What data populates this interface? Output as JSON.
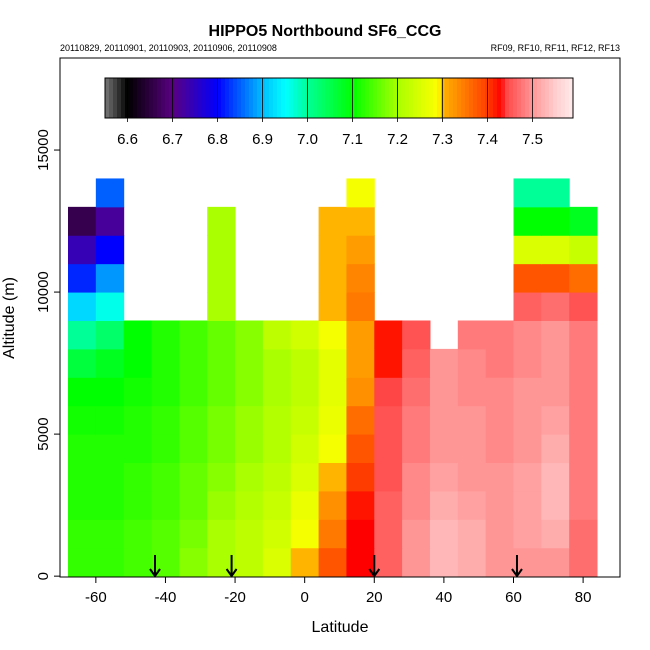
{
  "chart_data": {
    "type": "heatmap",
    "title": "HIPPO5 Northbound SF6_CCG",
    "subtitle_left": "20110829, 20110901, 20110903, 20110906, 20110908",
    "subtitle_right": "RF09, RF10, RF11, RF12, RF13",
    "xlabel": "Latitude",
    "ylabel": "Altitude (m)",
    "xlim": [
      -70.3,
      90.6
    ],
    "ylim": [
      -30,
      18240
    ],
    "xticks": [
      -60,
      -40,
      -20,
      0,
      20,
      40,
      60,
      80
    ],
    "xtick_labels": [
      "-60",
      "-40",
      "-20",
      "0",
      "20",
      "40",
      "60",
      "80"
    ],
    "yticks": [
      0,
      5000,
      10000,
      15000
    ],
    "ytick_labels": [
      "0",
      "5000",
      "10000",
      "15000"
    ],
    "grid": false,
    "colorbar": {
      "placement": "top",
      "range": [
        6.55,
        7.59
      ],
      "ticks": [
        6.6,
        6.7,
        6.8,
        6.9,
        7.0,
        7.1,
        7.2,
        7.3,
        7.4,
        7.5
      ],
      "tick_labels": [
        "6.6",
        "6.7",
        "6.8",
        "6.9",
        "7.0",
        "7.1",
        "7.2",
        "7.3",
        "7.4",
        "7.5"
      ]
    },
    "lat_centers": [
      -64,
      -56,
      -48,
      -40,
      -32,
      -24,
      -16,
      -8,
      0,
      8,
      16,
      24,
      32,
      40,
      48,
      56,
      64,
      72,
      80
    ],
    "lat_width": 8,
    "alt_centers": [
      500,
      1500,
      2500,
      3500,
      4500,
      5500,
      6500,
      7500,
      8500,
      9500,
      10500,
      11500,
      12500,
      13500
    ],
    "alt_height": 1000,
    "values": [
      [
        7.13,
        7.13,
        7.14,
        7.15,
        7.18,
        7.2,
        7.22,
        7.25,
        7.3,
        7.38,
        7.43,
        7.46,
        7.5,
        7.53,
        7.52,
        7.5,
        7.5,
        7.5,
        7.47
      ],
      [
        7.13,
        7.13,
        7.14,
        7.15,
        7.17,
        7.2,
        7.22,
        7.24,
        7.28,
        7.35,
        7.43,
        7.46,
        7.5,
        7.53,
        7.52,
        7.5,
        7.51,
        7.52,
        7.47
      ],
      [
        7.12,
        7.12,
        7.13,
        7.14,
        7.16,
        7.19,
        7.21,
        7.23,
        7.27,
        7.33,
        7.42,
        7.46,
        7.49,
        7.52,
        7.51,
        7.5,
        7.51,
        7.53,
        7.48
      ],
      [
        7.12,
        7.12,
        7.13,
        7.14,
        7.16,
        7.18,
        7.2,
        7.22,
        7.25,
        7.3,
        7.4,
        7.45,
        7.49,
        7.51,
        7.5,
        7.5,
        7.51,
        7.53,
        7.48
      ],
      [
        7.12,
        7.12,
        7.12,
        7.13,
        7.15,
        7.17,
        7.19,
        7.21,
        7.24,
        7.28,
        7.38,
        7.45,
        7.48,
        7.5,
        7.5,
        7.49,
        7.5,
        7.52,
        7.48
      ],
      [
        7.11,
        7.11,
        7.12,
        7.13,
        7.15,
        7.17,
        7.19,
        7.21,
        7.23,
        7.27,
        7.36,
        7.45,
        7.48,
        7.5,
        7.5,
        7.49,
        7.5,
        7.51,
        7.48
      ],
      [
        7.1,
        7.1,
        7.11,
        7.12,
        7.14,
        7.16,
        7.18,
        7.2,
        7.22,
        7.26,
        7.33,
        7.44,
        7.47,
        7.5,
        7.49,
        7.49,
        7.5,
        7.5,
        7.48
      ],
      [
        7.06,
        7.08,
        7.1,
        7.12,
        7.14,
        7.16,
        7.18,
        7.2,
        7.22,
        7.26,
        7.32,
        7.42,
        7.46,
        7.5,
        7.49,
        7.48,
        7.49,
        7.5,
        7.48
      ],
      [
        7.0,
        7.03,
        7.1,
        7.12,
        7.14,
        7.16,
        7.18,
        7.22,
        7.24,
        7.28,
        7.32,
        7.42,
        7.45,
        null,
        7.48,
        7.48,
        7.49,
        7.5,
        7.48
      ],
      [
        6.92,
        6.96,
        null,
        null,
        null,
        7.2,
        null,
        null,
        null,
        7.3,
        7.35,
        null,
        null,
        null,
        null,
        null,
        7.46,
        7.47,
        7.45
      ],
      [
        6.82,
        6.88,
        null,
        null,
        null,
        7.2,
        null,
        null,
        null,
        7.3,
        7.34,
        null,
        null,
        null,
        null,
        null,
        7.38,
        7.38,
        7.36
      ],
      [
        6.74,
        6.8,
        null,
        null,
        null,
        7.2,
        null,
        null,
        null,
        7.3,
        7.32,
        null,
        null,
        null,
        null,
        null,
        7.25,
        7.25,
        7.23
      ],
      [
        6.66,
        6.72,
        null,
        null,
        null,
        7.2,
        null,
        null,
        null,
        7.3,
        7.3,
        null,
        null,
        null,
        null,
        null,
        7.1,
        7.1,
        7.08
      ],
      [
        null,
        6.85,
        null,
        null,
        null,
        null,
        null,
        null,
        null,
        null,
        7.28,
        null,
        null,
        null,
        null,
        null,
        7.0,
        7.0,
        null
      ]
    ],
    "annotations": {
      "arrows_at_latitude": [
        -43,
        -21,
        20,
        61
      ]
    }
  }
}
